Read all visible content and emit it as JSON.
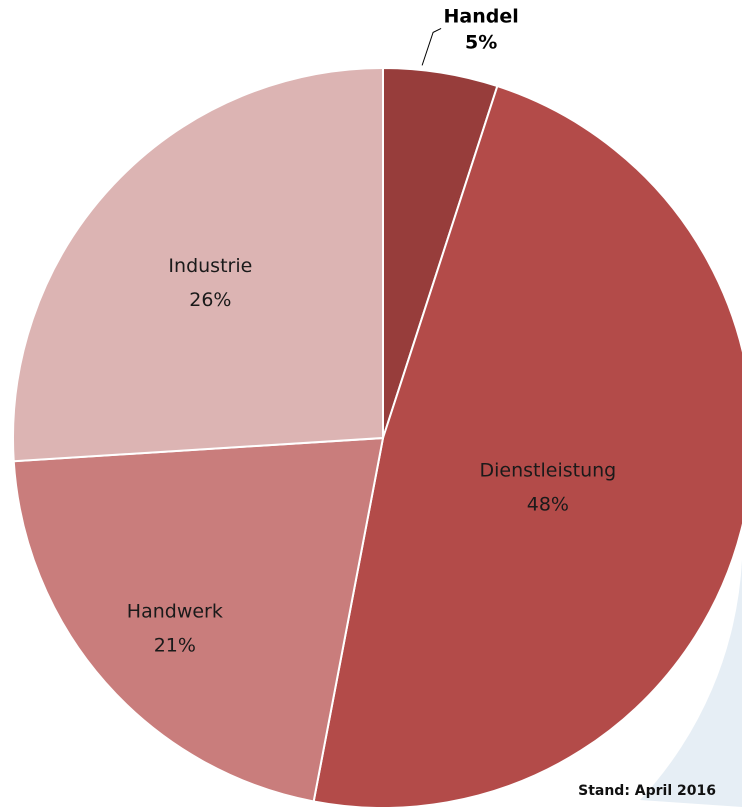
{
  "chart_data": {
    "type": "pie",
    "title": "",
    "slices": [
      {
        "label": "Handel",
        "value": 5,
        "display": "5%",
        "color": "#973d3b"
      },
      {
        "label": "Dienstleistung",
        "value": 48,
        "display": "48%",
        "color": "#b34b49"
      },
      {
        "label": "Handwerk",
        "value": 21,
        "display": "21%",
        "color": "#c97d7c"
      },
      {
        "label": "Industrie",
        "value": 26,
        "display": "26%",
        "color": "#dcb4b3"
      }
    ],
    "start_angle_deg": 0,
    "direction": "clockwise",
    "legend": "none",
    "footnote": "Stand: April 2016"
  },
  "background": {
    "accent_color": "#e6eef5"
  }
}
